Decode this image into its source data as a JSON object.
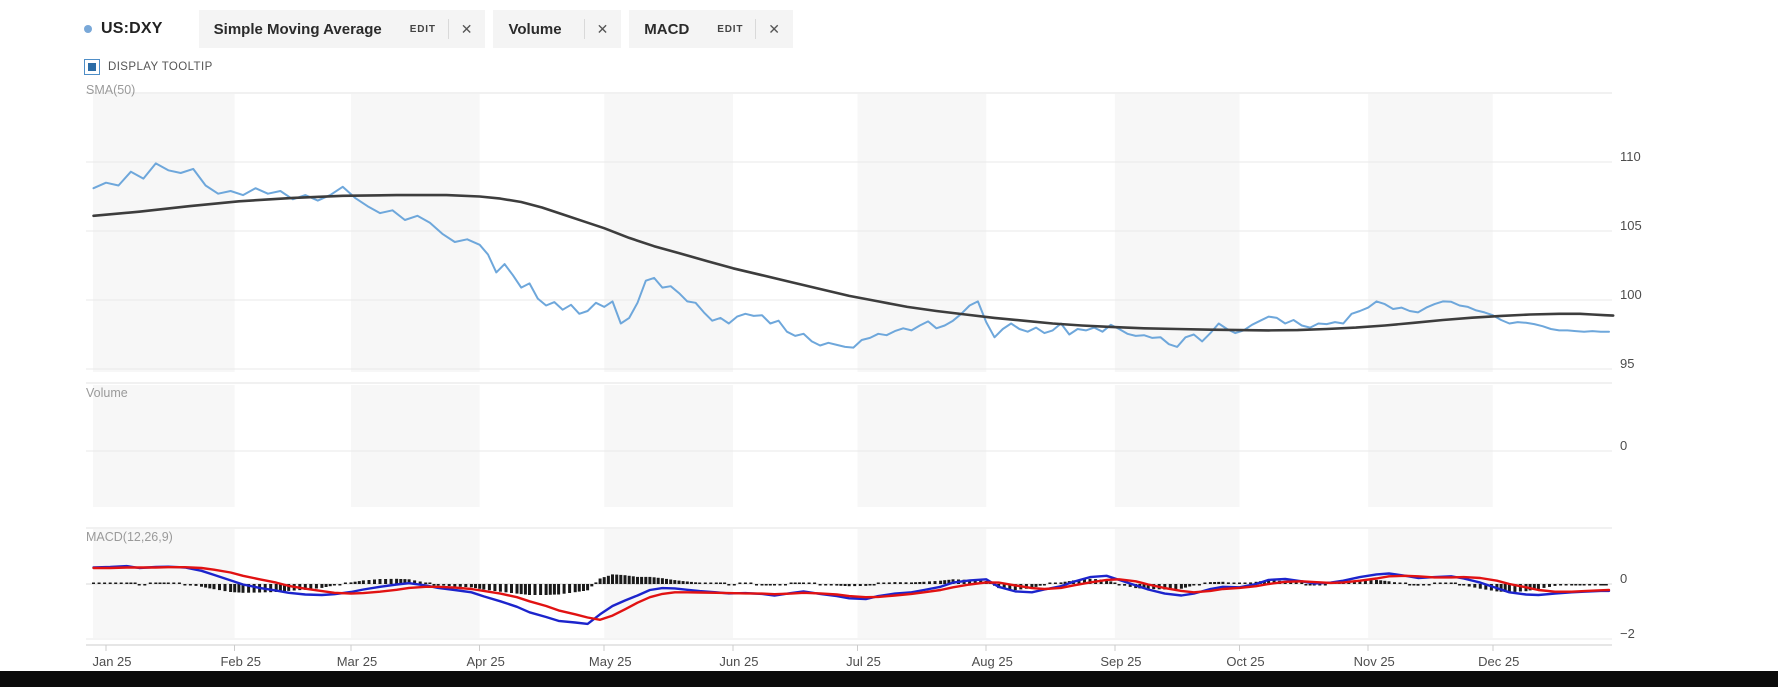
{
  "header": {
    "symbol": "US:DXY",
    "chips": [
      {
        "label": "Simple Moving Average",
        "edit_label": "EDIT",
        "close_label": "✕",
        "has_edit": true
      },
      {
        "label": "Volume",
        "close_label": "✕",
        "has_edit": false
      },
      {
        "label": "MACD",
        "edit_label": "EDIT",
        "close_label": "✕",
        "has_edit": true
      }
    ],
    "tooltip_toggle": {
      "label": "DISPLAY TOOLTIP",
      "checked": true
    }
  },
  "colors": {
    "accent_dot": "#79a8d8",
    "price_line": "#6ea7db",
    "sma_line": "#3d3d3d",
    "macd_line": "#1c24cc",
    "signal_line": "#e11212",
    "histogram": "#1a1a1a",
    "stripe": "#f7f7f7",
    "grid": "#e9e9e9",
    "border": "#e3e3e3",
    "zero_line": "#d8d8d8",
    "axis_line": "#cccccc",
    "black_bar": "#0b0b0b"
  },
  "chart_data": {
    "type": "line",
    "x_axis": {
      "tick_labels": [
        "Jan 25",
        "Feb 25",
        "Mar 25",
        "Apr 25",
        "May 25",
        "Jun 25",
        "Jul 25",
        "Aug 25",
        "Sep 25",
        "Oct 25",
        "Nov 25",
        "Dec 25"
      ],
      "month_start_days": [
        0,
        31,
        59,
        90,
        120,
        151,
        181,
        212,
        243,
        273,
        304,
        334
      ],
      "shaded_months": [
        0,
        2,
        4,
        6,
        8,
        10
      ]
    },
    "panels": [
      {
        "name": "price",
        "title": "SMA(50)",
        "yticks": [
          110,
          105,
          100,
          95
        ],
        "ytick_labels": [
          "110",
          "105",
          "100",
          "95"
        ],
        "series": [
          {
            "name": "US:DXY",
            "color_key": "price_line",
            "days": [
              -3,
              0,
              3,
              6,
              9,
              12,
              15,
              18,
              21,
              24,
              27,
              30,
              33,
              36,
              39,
              42,
              45,
              48,
              51,
              54,
              57,
              60,
              63,
              66,
              69,
              72,
              75,
              78,
              81,
              84,
              87,
              90,
              92,
              94,
              96,
              98,
              100,
              102,
              104,
              106,
              108,
              110,
              112,
              114,
              116,
              118,
              120,
              122,
              124,
              126,
              128,
              130,
              132,
              134,
              136,
              138,
              140,
              142,
              144,
              146,
              148,
              150,
              152,
              154,
              156,
              158,
              160,
              162,
              164,
              166,
              168,
              170,
              172,
              174,
              176,
              178,
              180,
              182,
              184,
              186,
              188,
              190,
              192,
              194,
              196,
              198,
              200,
              202,
              204,
              206,
              208,
              210,
              212,
              214,
              216,
              218,
              220,
              222,
              224,
              226,
              228,
              230,
              232,
              234,
              236,
              238,
              240,
              242,
              244,
              246,
              248,
              250,
              252,
              254,
              256,
              258,
              260,
              262,
              264,
              266,
              268,
              270,
              272,
              274,
              276,
              278,
              280,
              282,
              284,
              286,
              288,
              290,
              292,
              294,
              296,
              298,
              300,
              302,
              304,
              306,
              308,
              310,
              312,
              314,
              316,
              318,
              320,
              322,
              324,
              326,
              328,
              330,
              332,
              334,
              336,
              338,
              340,
              342,
              344,
              346,
              348,
              350,
              352,
              354,
              356,
              358,
              360,
              362
            ],
            "values": [
              108.1,
              108.5,
              108.3,
              109.3,
              108.8,
              109.9,
              109.4,
              109.2,
              109.5,
              108.3,
              107.7,
              107.9,
              107.6,
              108.1,
              107.7,
              107.9,
              107.3,
              107.6,
              107.2,
              107.6,
              108.2,
              107.4,
              106.8,
              106.3,
              106.5,
              105.8,
              106.1,
              105.6,
              104.8,
              104.2,
              104.4,
              104.0,
              103.3,
              102.0,
              102.6,
              101.8,
              100.9,
              101.2,
              100.1,
              99.6,
              99.85,
              99.3,
              99.65,
              99.0,
              99.2,
              99.8,
              99.5,
              99.9,
              98.3,
              98.7,
              99.8,
              101.4,
              101.6,
              100.9,
              101.0,
              100.5,
              99.9,
              99.8,
              99.1,
              98.5,
              98.7,
              98.3,
              98.8,
              99.0,
              98.85,
              98.9,
              98.3,
              98.5,
              97.7,
              97.4,
              97.55,
              97.0,
              96.7,
              96.9,
              96.75,
              96.6,
              96.55,
              97.1,
              97.25,
              97.55,
              97.45,
              97.75,
              97.95,
              97.8,
              98.15,
              98.45,
              97.95,
              98.15,
              98.5,
              99.0,
              99.6,
              99.9,
              98.4,
              97.3,
              97.9,
              98.3,
              97.9,
              97.7,
              98.0,
              97.6,
              97.8,
              98.3,
              97.5,
              97.9,
              97.8,
              98.0,
              97.7,
              98.2,
              97.9,
              97.55,
              97.4,
              97.45,
              97.25,
              97.3,
              96.8,
              96.6,
              97.3,
              97.5,
              97.0,
              97.6,
              98.3,
              97.9,
              97.6,
              97.8,
              98.2,
              98.5,
              98.8,
              98.7,
              98.3,
              98.55,
              98.15,
              98.0,
              98.3,
              98.25,
              98.4,
              98.3,
              99.0,
              99.2,
              99.45,
              99.9,
              99.7,
              99.35,
              99.45,
              99.2,
              99.1,
              99.45,
              99.7,
              99.9,
              99.87,
              99.6,
              99.5,
              99.25,
              99.1,
              98.9,
              98.55,
              98.3,
              98.4,
              98.35,
              98.25,
              98.1,
              97.9,
              97.8,
              97.8,
              97.75,
              97.7,
              97.75,
              97.7,
              97.7
            ]
          },
          {
            "name": "SMA(50)",
            "color_key": "sma_line",
            "days": [
              -3,
              8,
              20,
              32,
              45,
              57,
              70,
              82,
              90,
              95,
              100,
              105,
              110,
              115,
              120,
              126,
              132,
              138,
              145,
              151,
              158,
              165,
              172,
              179,
              186,
              193,
              200,
              207,
              214,
              221,
              228,
              235,
              242,
              250,
              258,
              266,
              273,
              280,
              287,
              294,
              301,
              308,
              315,
              322,
              329,
              336,
              343,
              350,
              355,
              358,
              361,
              363
            ],
            "values": [
              106.1,
              106.4,
              106.8,
              107.15,
              107.4,
              107.55,
              107.6,
              107.6,
              107.5,
              107.35,
              107.1,
              106.7,
              106.2,
              105.7,
              105.2,
              104.5,
              103.9,
              103.4,
              102.8,
              102.3,
              101.8,
              101.3,
              100.8,
              100.3,
              99.9,
              99.5,
              99.2,
              98.95,
              98.7,
              98.5,
              98.3,
              98.15,
              98.05,
              97.95,
              97.9,
              97.85,
              97.82,
              97.8,
              97.82,
              97.9,
              98.0,
              98.15,
              98.35,
              98.55,
              98.72,
              98.85,
              98.95,
              99.0,
              99.0,
              98.95,
              98.9,
              98.87
            ]
          }
        ]
      },
      {
        "name": "volume",
        "title": "Volume",
        "yticks": [
          0
        ],
        "ytick_labels": [
          "0"
        ],
        "series": []
      },
      {
        "name": "macd",
        "title": "MACD(12,26,9)",
        "yticks": [
          0,
          -2
        ],
        "ytick_labels": [
          "0",
          "−2"
        ],
        "series": [
          {
            "name": "MACD",
            "color_key": "macd_line",
            "days": [
              -3,
              1,
              5,
              8,
              12,
              15,
              19,
              23,
              26,
              30,
              33,
              37,
              41,
              44,
              48,
              52,
              55,
              59,
              62,
              66,
              70,
              73,
              77,
              80,
              84,
              88,
              91,
              95,
              99,
              102,
              106,
              109,
              113,
              116,
              119,
              122,
              125,
              128,
              131,
              134,
              137,
              140,
              143,
              147,
              150,
              154,
              158,
              161,
              165,
              168,
              172,
              176,
              179,
              183,
              186,
              190,
              194,
              197,
              201,
              204,
              208,
              212,
              215,
              219,
              223,
              226,
              230,
              233,
              237,
              241,
              244,
              248,
              251,
              255,
              259,
              262,
              266,
              269,
              273,
              277,
              280,
              284,
              288,
              291,
              295,
              298,
              302,
              306,
              309,
              313,
              316,
              320,
              324,
              327,
              331,
              335,
              338,
              342,
              345,
              349,
              353,
              356,
              360,
              362
            ],
            "values": [
              0.6,
              0.62,
              0.65,
              0.58,
              0.62,
              0.63,
              0.6,
              0.48,
              0.33,
              0.13,
              -0.02,
              -0.14,
              -0.24,
              -0.32,
              -0.38,
              -0.4,
              -0.37,
              -0.29,
              -0.2,
              -0.1,
              -0.02,
              0.03,
              -0.05,
              -0.14,
              -0.22,
              -0.3,
              -0.45,
              -0.63,
              -0.83,
              -1.03,
              -1.2,
              -1.34,
              -1.4,
              -1.45,
              -1.1,
              -0.8,
              -0.6,
              -0.42,
              -0.22,
              -0.15,
              -0.16,
              -0.21,
              -0.26,
              -0.3,
              -0.34,
              -0.33,
              -0.36,
              -0.42,
              -0.33,
              -0.27,
              -0.36,
              -0.44,
              -0.52,
              -0.55,
              -0.44,
              -0.35,
              -0.3,
              -0.22,
              -0.1,
              0.05,
              0.13,
              0.17,
              -0.1,
              -0.27,
              -0.3,
              -0.2,
              -0.08,
              0.08,
              0.25,
              0.3,
              0.15,
              -0.05,
              -0.2,
              -0.35,
              -0.42,
              -0.35,
              -0.18,
              -0.1,
              -0.12,
              0.0,
              0.15,
              0.18,
              0.1,
              0.02,
              0.05,
              0.12,
              0.25,
              0.35,
              0.38,
              0.3,
              0.22,
              0.25,
              0.28,
              0.2,
              0.05,
              -0.15,
              -0.3,
              -0.38,
              -0.4,
              -0.35,
              -0.3,
              -0.28,
              -0.25,
              -0.25
            ]
          },
          {
            "name": "Signal",
            "color_key": "signal_line",
            "days": [
              -3,
              1,
              5,
              8,
              12,
              15,
              19,
              23,
              26,
              30,
              33,
              37,
              41,
              44,
              48,
              52,
              55,
              59,
              62,
              66,
              70,
              73,
              77,
              80,
              84,
              88,
              91,
              95,
              99,
              102,
              106,
              109,
              113,
              116,
              119,
              122,
              125,
              128,
              131,
              134,
              137,
              140,
              143,
              147,
              150,
              154,
              158,
              161,
              165,
              168,
              172,
              176,
              179,
              183,
              186,
              190,
              194,
              197,
              201,
              204,
              208,
              212,
              215,
              219,
              223,
              226,
              230,
              233,
              237,
              241,
              244,
              248,
              251,
              255,
              259,
              262,
              266,
              269,
              273,
              277,
              280,
              284,
              288,
              291,
              295,
              298,
              302,
              306,
              309,
              313,
              316,
              320,
              324,
              327,
              331,
              335,
              338,
              342,
              345,
              349,
              353,
              356,
              360,
              362
            ],
            "values": [
              0.58,
              0.58,
              0.6,
              0.6,
              0.6,
              0.61,
              0.61,
              0.58,
              0.52,
              0.42,
              0.3,
              0.17,
              0.05,
              -0.07,
              -0.17,
              -0.26,
              -0.32,
              -0.35,
              -0.33,
              -0.28,
              -0.21,
              -0.14,
              -0.1,
              -0.1,
              -0.13,
              -0.18,
              -0.25,
              -0.35,
              -0.48,
              -0.63,
              -0.8,
              -0.96,
              -1.1,
              -1.22,
              -1.3,
              -1.15,
              -0.92,
              -0.68,
              -0.48,
              -0.36,
              -0.3,
              -0.3,
              -0.31,
              -0.32,
              -0.33,
              -0.34,
              -0.35,
              -0.37,
              -0.35,
              -0.32,
              -0.34,
              -0.38,
              -0.44,
              -0.48,
              -0.47,
              -0.42,
              -0.36,
              -0.3,
              -0.22,
              -0.12,
              -0.02,
              0.06,
              0.05,
              -0.05,
              -0.15,
              -0.18,
              -0.14,
              -0.05,
              0.06,
              0.15,
              0.17,
              0.1,
              -0.02,
              -0.15,
              -0.25,
              -0.3,
              -0.25,
              -0.18,
              -0.14,
              -0.08,
              0.0,
              0.08,
              0.1,
              0.07,
              0.04,
              0.06,
              0.12,
              0.2,
              0.28,
              0.3,
              0.28,
              0.24,
              0.24,
              0.25,
              0.22,
              0.12,
              0.0,
              -0.12,
              -0.22,
              -0.28,
              -0.28,
              -0.26,
              -0.23,
              -0.22
            ]
          },
          {
            "name": "Histogram",
            "type": "bar",
            "color_key": "histogram",
            "derived": "macd_minus_signal"
          }
        ]
      }
    ]
  }
}
